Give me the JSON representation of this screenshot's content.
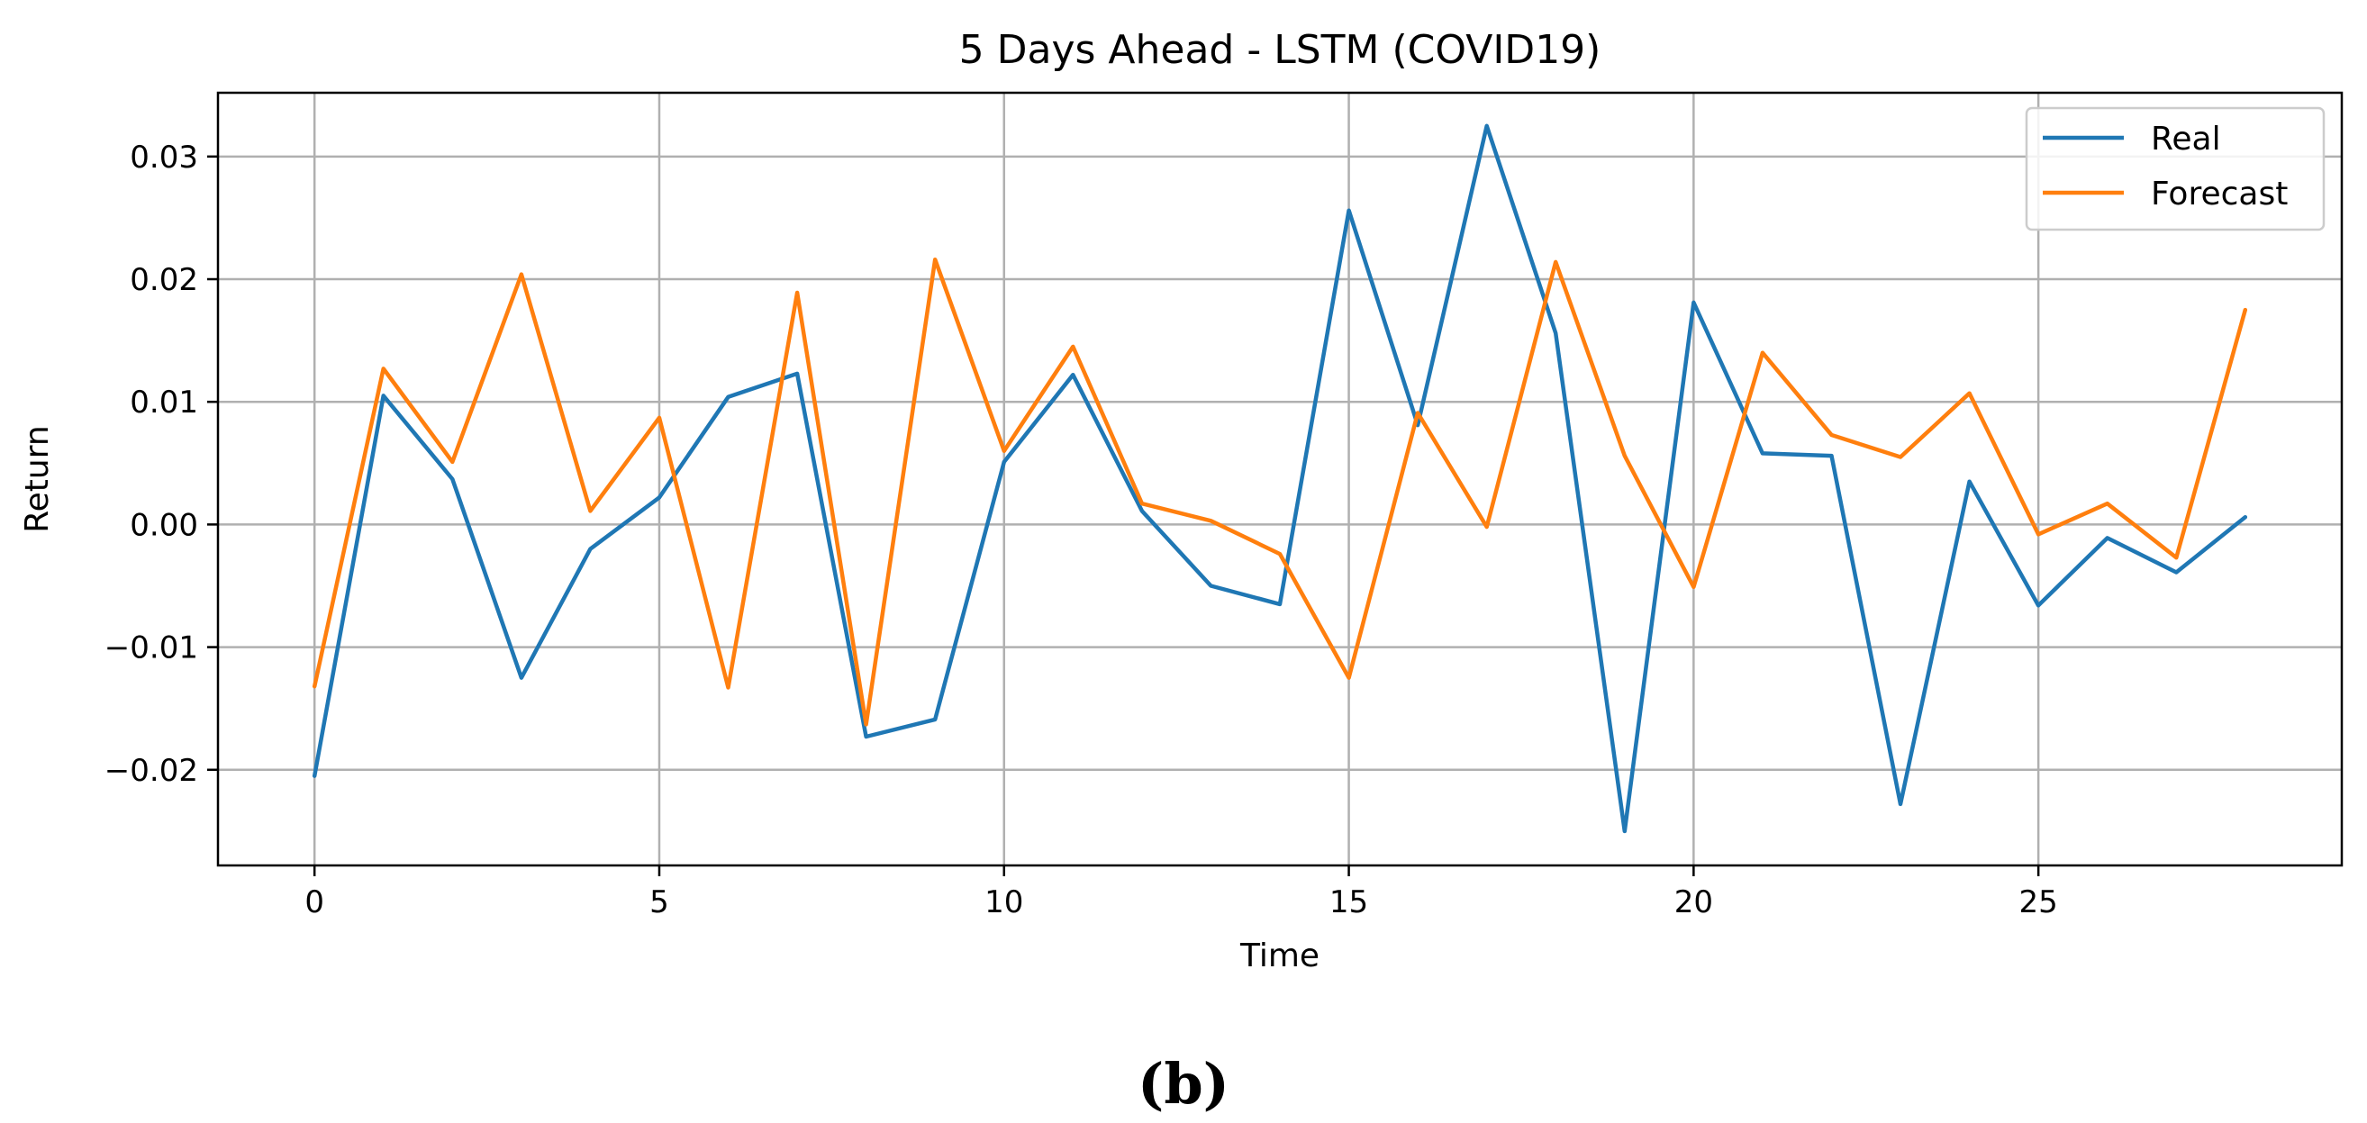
{
  "chart_data": {
    "type": "line",
    "title": "5 Days Ahead - LSTM (COVID19)",
    "xlabel": "Time",
    "ylabel": "Return",
    "xlim": [
      -1.4,
      29.4
    ],
    "ylim": [
      -0.0278,
      0.0352
    ],
    "xticks": [
      0,
      5,
      10,
      15,
      20,
      25
    ],
    "xtick_labels": [
      "0",
      "5",
      "10",
      "15",
      "20",
      "25"
    ],
    "yticks": [
      -0.02,
      -0.01,
      0.0,
      0.01,
      0.02,
      0.03
    ],
    "ytick_labels": [
      "−0.02",
      "−0.01",
      "0.00",
      "0.01",
      "0.02",
      "0.03"
    ],
    "grid": true,
    "legend_position": "top-right",
    "x": [
      0,
      1,
      2,
      3,
      4,
      5,
      6,
      7,
      8,
      9,
      10,
      11,
      12,
      13,
      14,
      15,
      16,
      17,
      18,
      19,
      20,
      21,
      22,
      23,
      24,
      25,
      26,
      27,
      28
    ],
    "series": [
      {
        "name": "Real",
        "color": "#1f77b4",
        "values": [
          -0.0205,
          0.0105,
          0.0037,
          -0.0125,
          -0.002,
          0.0022,
          0.0104,
          0.0123,
          -0.0173,
          -0.0159,
          0.0051,
          0.0122,
          0.0011,
          -0.005,
          -0.0065,
          0.0256,
          0.0081,
          0.0325,
          0.0156,
          -0.025,
          0.0181,
          0.0058,
          0.0056,
          -0.0228,
          0.0035,
          -0.0066,
          -0.0011,
          -0.0039,
          0.0006
        ]
      },
      {
        "name": "Forecast",
        "color": "#ff7f0e",
        "values": [
          -0.0132,
          0.0127,
          0.0051,
          0.0204,
          0.0011,
          0.0087,
          -0.0133,
          0.0189,
          -0.0163,
          0.0216,
          0.006,
          0.0145,
          0.0017,
          0.0003,
          -0.0024,
          -0.0125,
          0.0091,
          -0.0002,
          0.0214,
          0.0056,
          -0.0051,
          0.014,
          0.0073,
          0.0055,
          0.0107,
          -0.0008,
          0.0017,
          -0.0027,
          0.0175
        ]
      }
    ],
    "panel_label": "(b)"
  }
}
